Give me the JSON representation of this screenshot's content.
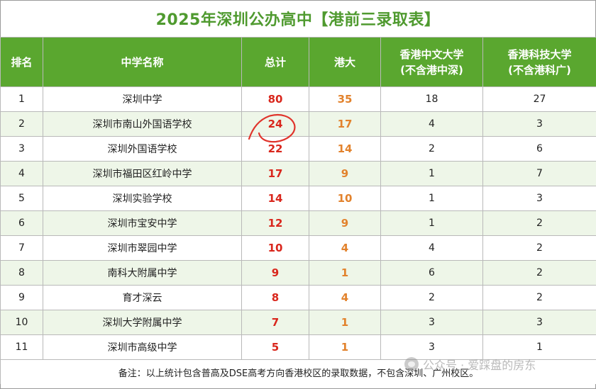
{
  "title": "2025年深圳公办高中【港前三录取表】",
  "headers": {
    "rank": "排名",
    "school": "中学名称",
    "total": "总计",
    "hku": "港大",
    "cuhk_line1": "香港中文大学",
    "cuhk_line2": "(不含港中深)",
    "hkust_line1": "香港科技大学",
    "hkust_line2": "(不含港科广)"
  },
  "rows": [
    {
      "rank": "1",
      "school": "深圳中学",
      "total": "80",
      "hku": "35",
      "cuhk": "18",
      "hkust": "27"
    },
    {
      "rank": "2",
      "school": "深圳市南山外国语学校",
      "total": "24",
      "hku": "17",
      "cuhk": "4",
      "hkust": "3"
    },
    {
      "rank": "3",
      "school": "深圳外国语学校",
      "total": "22",
      "hku": "14",
      "cuhk": "2",
      "hkust": "6"
    },
    {
      "rank": "4",
      "school": "深圳市福田区红岭中学",
      "total": "17",
      "hku": "9",
      "cuhk": "1",
      "hkust": "7"
    },
    {
      "rank": "5",
      "school": "深圳实验学校",
      "total": "14",
      "hku": "10",
      "cuhk": "1",
      "hkust": "3"
    },
    {
      "rank": "6",
      "school": "深圳市宝安中学",
      "total": "12",
      "hku": "9",
      "cuhk": "1",
      "hkust": "2"
    },
    {
      "rank": "7",
      "school": "深圳市翠园中学",
      "total": "10",
      "hku": "4",
      "cuhk": "4",
      "hkust": "2"
    },
    {
      "rank": "8",
      "school": "南科大附属中学",
      "total": "9",
      "hku": "1",
      "cuhk": "6",
      "hkust": "2"
    },
    {
      "rank": "9",
      "school": "育才深云",
      "total": "8",
      "hku": "4",
      "cuhk": "2",
      "hkust": "2"
    },
    {
      "rank": "10",
      "school": "深圳大学附属中学",
      "total": "7",
      "hku": "1",
      "cuhk": "3",
      "hkust": "3"
    },
    {
      "rank": "11",
      "school": "深圳市高级中学",
      "total": "5",
      "hku": "1",
      "cuhk": "3",
      "hkust": "1"
    }
  ],
  "note": "备注：以上统计包含普高及DSE高考方向香港校区的录取数据，不包含深圳、广州校区。",
  "watermark": "公众号 · 爱踩盘的房东",
  "colors": {
    "title": "#4f9a2f",
    "header_bg": "#5aa72f",
    "stripe": "#eef6e8",
    "total": "#d9261c",
    "hku": "#e2822c",
    "annotation": "#e0342c"
  }
}
